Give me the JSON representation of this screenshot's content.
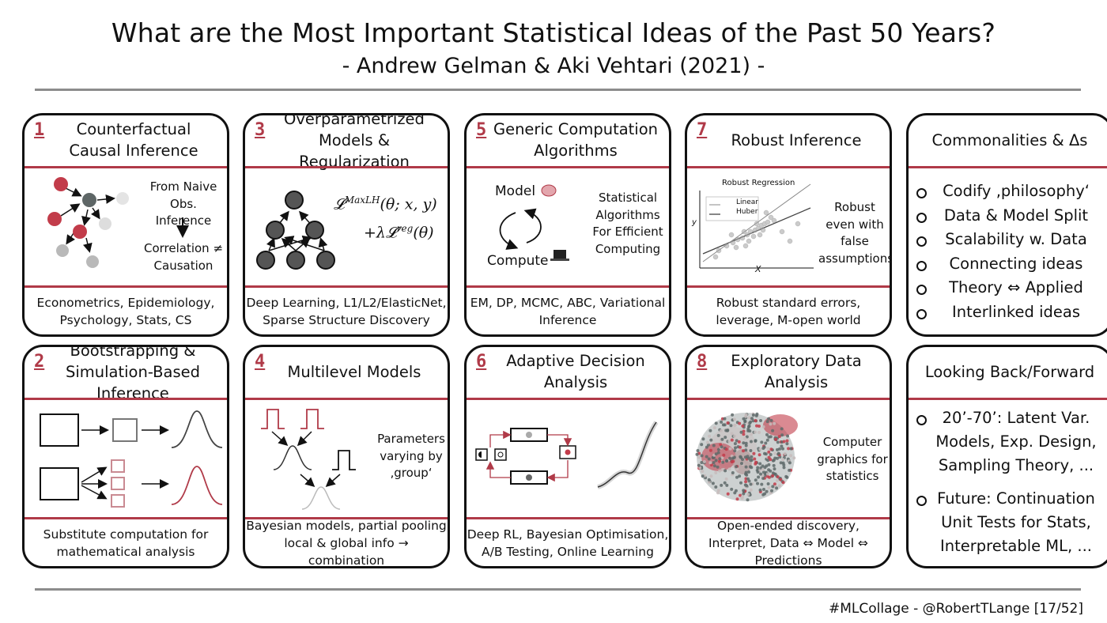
{
  "title": "What are the Most Important Statistical Ideas of the Past 50 Years?",
  "subtitle": "- Andrew Gelman & Aki Vehtari (2021) -",
  "cards": [
    {
      "num": "1",
      "head": "Counterfactual Causal Inference",
      "text1": "From Naive Obs. Inference",
      "text2": "Correlation ≠ Causation",
      "foot": "Econometrics, Epidemiology, Psychology, Stats, CS"
    },
    {
      "num": "3",
      "head": "Overparametrized Models & Regularization",
      "eq1": "𝓛",
      "eq1sup": "MaxLH",
      "eq1rest": "(θ; x, y)",
      "eq2": "+λ𝓛",
      "eq2sup": "reg",
      "eq2rest": "(θ)",
      "foot": "Deep Learning, L1/L2/ElasticNet, Sparse Structure Discovery"
    },
    {
      "num": "5",
      "head": "Generic Computation Algorithms",
      "model": "Model",
      "compute": "Compute",
      "text": "Statistical Algorithms For Efficient Computing",
      "foot": "EM, DP, MCMC, ABC, Variational Inference"
    },
    {
      "num": "7",
      "head": "Robust Inference",
      "plot_title": "Robust Regression",
      "legend_linear": "Linear",
      "legend_huber": "Huber",
      "xlabel": "X",
      "ylabel": "y",
      "text": "Robust even with false assumptions",
      "foot": "Robust standard errors, leverage, M-open world"
    },
    {
      "num": "2",
      "head": "Bootstrapping & Simulation-Based Inference",
      "foot": "Substitute computation for mathematical analysis"
    },
    {
      "num": "4",
      "head": "Multilevel Models",
      "text": "Parameters varying by ‚group‘",
      "foot": "Bayesian models, partial pooling local & global info → combination"
    },
    {
      "num": "6",
      "head": "Adaptive Decision Analysis",
      "foot": "Deep RL, Bayesian Optimisation, A/B Testing, Online Learning"
    },
    {
      "num": "8",
      "head": "Exploratory Data Analysis",
      "text": "Computer graphics for statistics",
      "foot": "Open-ended discovery, Interpret, Data ⇔ Model ⇔ Predictions"
    }
  ],
  "commonalities": {
    "head": "Commonalities & Δs",
    "items": [
      "Codify ‚philosophy‘",
      "Data & Model Split",
      "Scalability w. Data",
      "Connecting ideas",
      "Theory ⇔ Applied",
      "Interlinked ideas"
    ]
  },
  "looking": {
    "head": "Looking Back/Forward",
    "items": [
      {
        "lines": [
          "20’-70’: Latent Var.",
          "Models, Exp. Design,",
          "Sampling Theory, ..."
        ]
      },
      {
        "lines": [
          "Future: Continuation",
          "Unit Tests for Stats,",
          "Interpretable ML, ..."
        ]
      }
    ]
  },
  "footer": "#MLCollage - @RobertTLange [17/52]",
  "colors": {
    "accent": "#b03a48",
    "node_gray": "#5e6666",
    "light": "#c9c9c9"
  }
}
